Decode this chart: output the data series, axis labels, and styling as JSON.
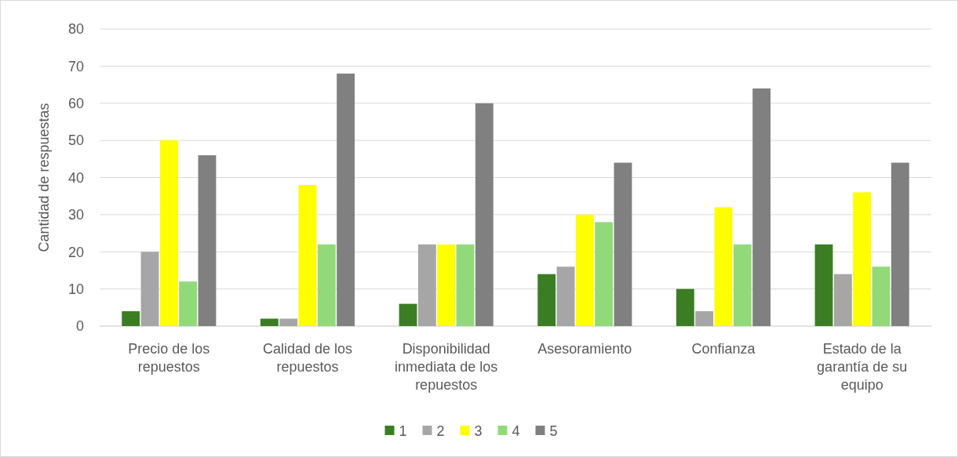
{
  "chart_data": {
    "type": "bar",
    "ylabel": "Cantidad de respuestas",
    "categories": [
      "Precio de los repuestos",
      "Calidad de los repuestos",
      "Disponibilidad inmediata de los repuestos",
      "Asesoramiento",
      "Confianza",
      "Estado de la garantía de su equipo"
    ],
    "series": [
      {
        "name": "1",
        "color": "#3b7d23",
        "values": [
          4,
          2,
          6,
          14,
          10,
          22
        ]
      },
      {
        "name": "2",
        "color": "#a6a6a6",
        "values": [
          20,
          2,
          22,
          16,
          4,
          14
        ]
      },
      {
        "name": "3",
        "color": "#ffff00",
        "values": [
          50,
          38,
          22,
          30,
          32,
          36
        ]
      },
      {
        "name": "4",
        "color": "#92d97a",
        "values": [
          12,
          22,
          22,
          28,
          22,
          16
        ]
      },
      {
        "name": "5",
        "color": "#808080",
        "values": [
          46,
          68,
          60,
          44,
          64,
          44
        ]
      }
    ],
    "ylim": [
      0,
      80
    ],
    "yticks": [
      0,
      10,
      20,
      30,
      40,
      50,
      60,
      70,
      80
    ],
    "grid": "y",
    "legend": "bottom"
  }
}
